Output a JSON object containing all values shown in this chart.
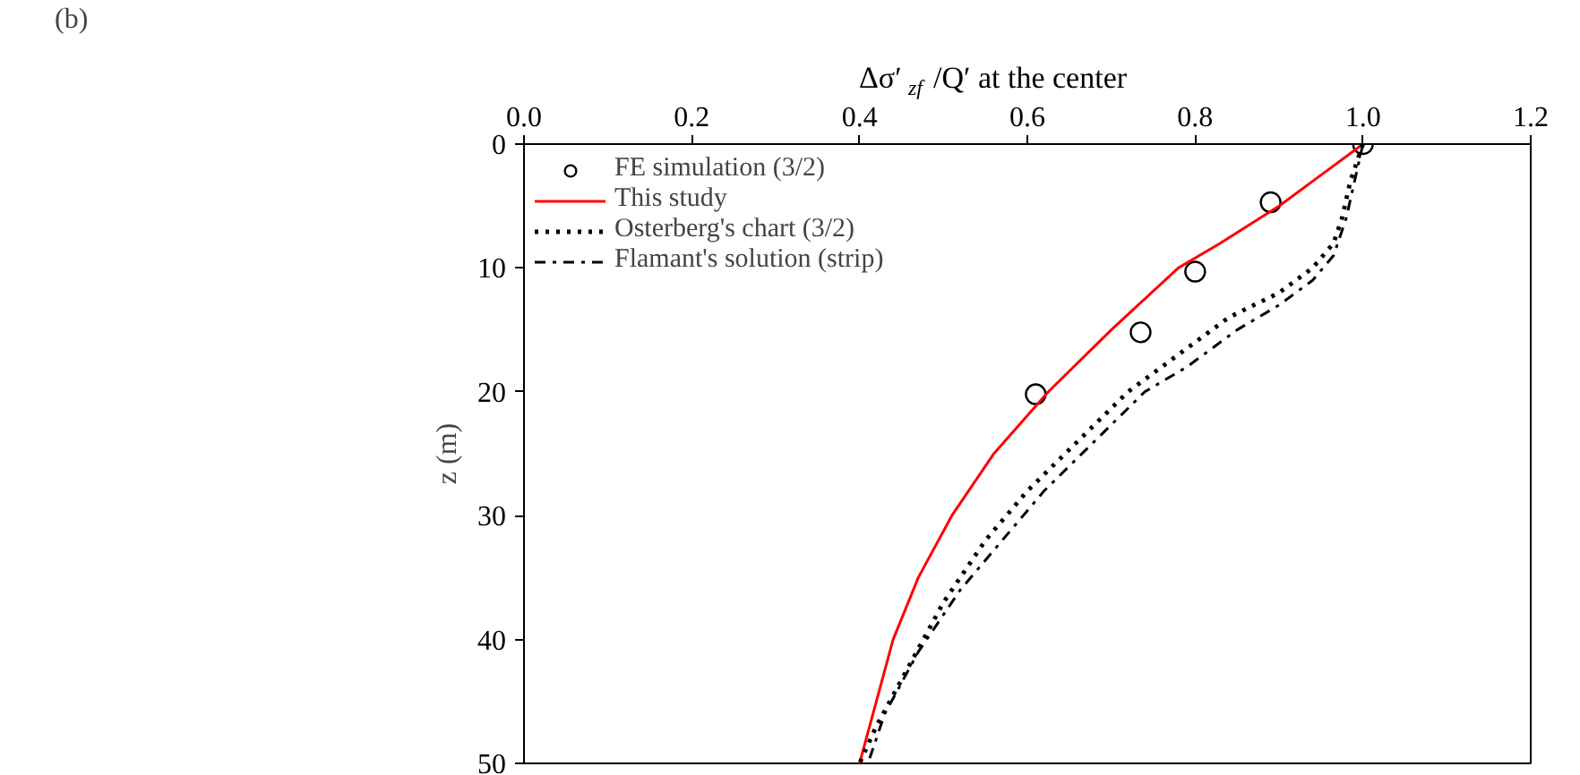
{
  "chart_data": {
    "type": "line",
    "xlabel": "Δσ′$_{zf}$/Q′ at the center",
    "ylabel": "z (m)",
    "annotations": [
      "(b)"
    ],
    "xlim": [
      0,
      1.2
    ],
    "xticks": [
      {
        "value": 0,
        "label": "0.0"
      },
      {
        "value": 0.2,
        "label": "0.2"
      },
      {
        "value": 0.4,
        "label": "0.4"
      },
      {
        "value": 0.6,
        "label": "0.6"
      },
      {
        "value": 0.8,
        "label": "0.8"
      },
      {
        "value": 1,
        "label": "1.0"
      },
      {
        "value": 1.2,
        "label": "1.2"
      }
    ],
    "ylim": [
      50,
      0
    ],
    "yticks": [
      0,
      10,
      20,
      30,
      40,
      50
    ],
    "grid": false,
    "legend": "top left",
    "series": [
      {
        "name": "FE simulation (3/2)",
        "type": "scatter",
        "marker": "circle",
        "color": "#000000",
        "x": [
          1.0,
          0.89,
          0.8,
          0.735,
          0.61
        ],
        "values": [
          0,
          4.7,
          10.3,
          15.2,
          20.2
        ]
      },
      {
        "name": "This study",
        "line_style": "solid",
        "color": "#ff0000",
        "x": [
          1.0,
          0.95,
          0.9,
          0.83,
          0.78,
          0.7,
          0.625,
          0.56,
          0.51,
          0.47,
          0.44,
          0.42,
          0.4
        ],
        "values": [
          0,
          2.5,
          5,
          8,
          10,
          15,
          20,
          25,
          30,
          35,
          40,
          45,
          50
        ]
      },
      {
        "name": "Osterberg's chart (3/2)",
        "line_style": "dotted",
        "color": "#000000",
        "x": [
          1.0,
          0.985,
          0.975,
          0.965,
          0.94,
          0.9,
          0.84,
          0.78,
          0.72,
          0.66,
          0.6,
          0.55,
          0.5,
          0.46,
          0.42,
          0.4
        ],
        "values": [
          0,
          3,
          6,
          8,
          10,
          12,
          14,
          17,
          20,
          24,
          28,
          32,
          37,
          42,
          47,
          50
        ]
      },
      {
        "name": "Flamant's solution (strip)",
        "line_style": "dashdot",
        "color": "#000000",
        "x": [
          1.0,
          0.99,
          0.98,
          0.965,
          0.94,
          0.9,
          0.85,
          0.79,
          0.74,
          0.68,
          0.62,
          0.57,
          0.52,
          0.47,
          0.43,
          0.41
        ],
        "values": [
          0,
          3,
          6,
          9,
          11,
          13,
          15,
          18,
          20,
          24,
          28,
          32,
          36,
          41,
          46,
          50
        ]
      }
    ]
  }
}
